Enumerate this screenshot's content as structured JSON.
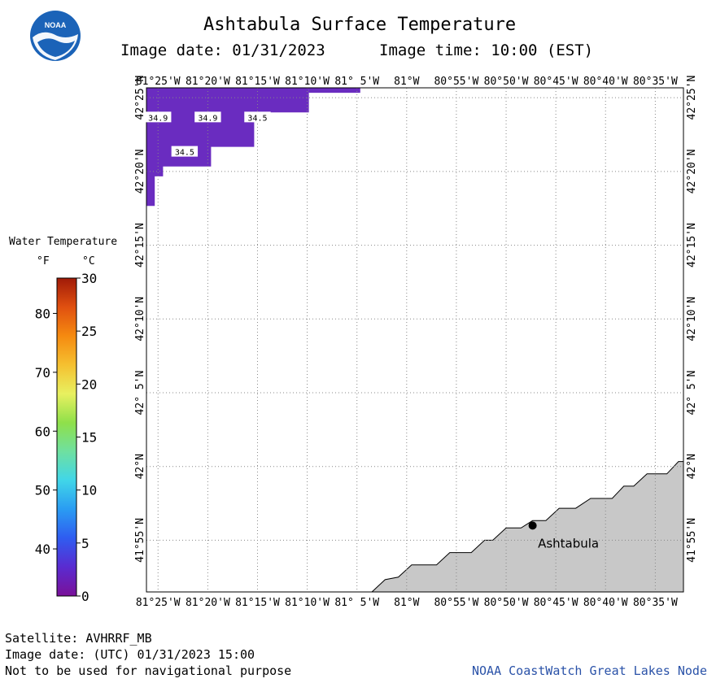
{
  "header": {
    "title": "Ashtabula Surface Temperature",
    "image_date_label": "Image date: 01/31/2023",
    "image_time_label": "Image time: 10:00 (EST)",
    "logo_text": "NOAA"
  },
  "legend": {
    "title": "Water Temperature",
    "unit_f": "°F",
    "unit_c": "°C",
    "f_ticks": [
      {
        "label": "80",
        "value_f": 80
      },
      {
        "label": "70",
        "value_f": 70
      },
      {
        "label": "60",
        "value_f": 60
      },
      {
        "label": "50",
        "value_f": 50
      },
      {
        "label": "40",
        "value_f": 40
      }
    ],
    "c_ticks": [
      {
        "label": "30",
        "value_c": 30
      },
      {
        "label": "25",
        "value_c": 25
      },
      {
        "label": "20",
        "value_c": 20
      },
      {
        "label": "15",
        "value_c": 15
      },
      {
        "label": "10",
        "value_c": 10
      },
      {
        "label": "5",
        "value_c": 5
      },
      {
        "label": "0",
        "value_c": 0
      }
    ],
    "colors": [
      "#7a1199",
      "#5a2bd0",
      "#2f5cf0",
      "#2a9cf2",
      "#41d6e8",
      "#6fe0a0",
      "#8fe04a",
      "#e8f060",
      "#f5c030",
      "#f58a10",
      "#e05010",
      "#a01a08"
    ]
  },
  "map": {
    "lon_range": [
      -81.4361,
      -80.5361
    ],
    "lat_range": [
      41.8583,
      42.4278
    ],
    "lon_labels": [
      {
        "lon": -81.4167,
        "label": "81°25'W"
      },
      {
        "lon": -81.3333,
        "label": "81°20'W"
      },
      {
        "lon": -81.25,
        "label": "81°15'W"
      },
      {
        "lon": -81.1667,
        "label": "81°10'W"
      },
      {
        "lon": -81.0833,
        "label": "81° 5'W"
      },
      {
        "lon": -81.0,
        "label": "81°W"
      },
      {
        "lon": -80.9167,
        "label": "80°55'W"
      },
      {
        "lon": -80.8333,
        "label": "80°50'W"
      },
      {
        "lon": -80.75,
        "label": "80°45'W"
      },
      {
        "lon": -80.6667,
        "label": "80°40'W"
      },
      {
        "lon": -80.5833,
        "label": "80°35'W"
      }
    ],
    "lat_labels": [
      {
        "lat": 42.4167,
        "label": "42°25'N"
      },
      {
        "lat": 42.3333,
        "label": "42°20'N"
      },
      {
        "lat": 42.25,
        "label": "42°15'N"
      },
      {
        "lat": 42.1667,
        "label": "42°10'N"
      },
      {
        "lat": 42.0833,
        "label": "42° 5'N"
      },
      {
        "lat": 42.0,
        "label": "42°N"
      },
      {
        "lat": 41.9167,
        "label": "41°55'N"
      }
    ],
    "temperature_patch": {
      "color": "#6a2cc0",
      "polygon": [
        [
          -81.4361,
          42.4278
        ],
        [
          -81.1639,
          42.4278
        ],
        [
          -81.1639,
          42.4
        ],
        [
          -81.2556,
          42.4
        ],
        [
          -81.2556,
          42.3611
        ],
        [
          -81.3278,
          42.3611
        ],
        [
          -81.3278,
          42.3389
        ],
        [
          -81.4083,
          42.3389
        ],
        [
          -81.4083,
          42.3278
        ],
        [
          -81.4222,
          42.3278
        ],
        [
          -81.4222,
          42.2944
        ],
        [
          -81.4361,
          42.2944
        ]
      ],
      "strip": [
        [
          -81.1639,
          42.4278
        ],
        [
          -81.0778,
          42.4278
        ],
        [
          -81.0778,
          42.4222
        ],
        [
          -81.1639,
          42.4222
        ]
      ]
    },
    "temperature_labels": [
      {
        "text": "34.9",
        "lon": -81.4167,
        "lat": 42.3944
      },
      {
        "text": "34.9",
        "lon": -81.3333,
        "lat": 42.3944
      },
      {
        "text": "34.5",
        "lon": -81.25,
        "lat": 42.3944
      },
      {
        "text": "34.5",
        "lon": -81.3722,
        "lat": 42.3556
      }
    ],
    "land": {
      "color": "#c8c8c8",
      "coast_points": [
        [
          -81.0583,
          41.8583
        ],
        [
          -81.0361,
          41.8722
        ],
        [
          -81.0139,
          41.875
        ],
        [
          -80.9917,
          41.8889
        ],
        [
          -80.95,
          41.8889
        ],
        [
          -80.9278,
          41.9028
        ],
        [
          -80.8917,
          41.9028
        ],
        [
          -80.8694,
          41.9167
        ],
        [
          -80.8556,
          41.9167
        ],
        [
          -80.8333,
          41.9306
        ],
        [
          -80.8083,
          41.9306
        ],
        [
          -80.7889,
          41.9389
        ],
        [
          -80.7667,
          41.9389
        ],
        [
          -80.7444,
          41.9528
        ],
        [
          -80.7167,
          41.9528
        ],
        [
          -80.6917,
          41.9639
        ],
        [
          -80.6556,
          41.9639
        ],
        [
          -80.6361,
          41.9778
        ],
        [
          -80.6194,
          41.9778
        ],
        [
          -80.5972,
          41.9917
        ],
        [
          -80.5639,
          41.9917
        ],
        [
          -80.5444,
          42.0056
        ],
        [
          -80.5361,
          42.0056
        ]
      ]
    },
    "city": {
      "name": "Ashtabula",
      "lon": -80.7889,
      "lat": 41.9333
    }
  },
  "footer": {
    "satellite": "Satellite: AVHRRF_MB",
    "utc_date": "Image date: (UTC) 01/31/2023  15:00",
    "disclaimer": "Not to be used for navigational purpose",
    "credit": "NOAA CoastWatch Great Lakes Node"
  }
}
